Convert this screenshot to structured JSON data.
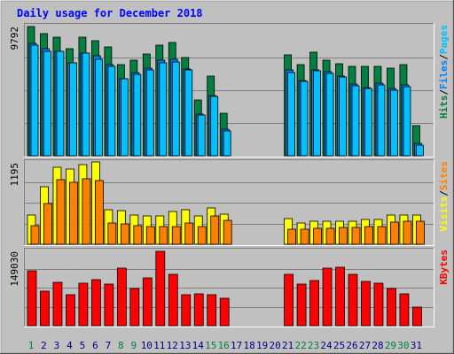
{
  "title": "Daily usage for December 2018",
  "colors": {
    "hits": "#008040",
    "files": "#0080ff",
    "pages": "#00c0ff",
    "visits": "#ffff00",
    "sites": "#ff8000",
    "kbytes": "#ff0000",
    "weekend_day": "#008040",
    "weekday": "#000080",
    "title": "#0000ff",
    "background": "#c0c0c0"
  },
  "chart_data": [
    {
      "type": "bar",
      "name": "hits-files-pages",
      "ymax_label": "9792",
      "ylim": [
        0,
        9792
      ],
      "right_labels": [
        "Hits",
        "Files",
        "Pages"
      ],
      "categories": [
        "1",
        "2",
        "3",
        "4",
        "5",
        "6",
        "7",
        "8",
        "9",
        "10",
        "11",
        "12",
        "13",
        "14",
        "15",
        "16",
        "17",
        "18",
        "19",
        "20",
        "21",
        "22",
        "23",
        "24",
        "25",
        "26",
        "27",
        "28",
        "29",
        "30",
        "31"
      ],
      "series": [
        {
          "name": "Hits",
          "values": [
            9690,
            9150,
            8880,
            7980,
            8880,
            8610,
            8150,
            6790,
            7160,
            7610,
            8270,
            8500,
            7340,
            4160,
            5970,
            3180,
            0,
            0,
            0,
            0,
            7520,
            6800,
            7710,
            7150,
            6870,
            6680,
            6680,
            6680,
            6540,
            6790,
            2280
          ]
        },
        {
          "name": "Files",
          "values": [
            8420,
            7980,
            7840,
            6930,
            7690,
            7480,
            6800,
            5780,
            6220,
            6540,
            7120,
            7180,
            6480,
            3090,
            4500,
            1990,
            0,
            0,
            0,
            0,
            6400,
            5630,
            6400,
            6270,
            5970,
            5380,
            5070,
            5440,
            5000,
            5270,
            950
          ]
        },
        {
          "name": "Pages",
          "values": [
            8290,
            7790,
            7840,
            6930,
            7690,
            7230,
            6680,
            5760,
            6060,
            6410,
            6930,
            7000,
            6390,
            3030,
            4440,
            1880,
            0,
            0,
            0,
            0,
            6220,
            5560,
            6350,
            6130,
            5870,
            5230,
            5000,
            5310,
            4870,
            5140,
            820
          ]
        }
      ]
    },
    {
      "type": "bar",
      "name": "visits-sites",
      "ymax_label": "1195",
      "ylim": [
        0,
        1195
      ],
      "right_labels": [
        "Visits",
        "Sites"
      ],
      "categories": [
        "1",
        "2",
        "3",
        "4",
        "5",
        "6",
        "7",
        "8",
        "9",
        "10",
        "11",
        "12",
        "13",
        "14",
        "15",
        "16",
        "17",
        "18",
        "19",
        "20",
        "21",
        "22",
        "23",
        "24",
        "25",
        "26",
        "27",
        "28",
        "29",
        "30",
        "31"
      ],
      "series": [
        {
          "name": "Visits",
          "values": [
            420,
            830,
            1110,
            1080,
            1150,
            1180,
            500,
            480,
            420,
            410,
            410,
            470,
            500,
            410,
            520,
            430,
            0,
            0,
            0,
            0,
            370,
            310,
            330,
            330,
            330,
            330,
            350,
            350,
            420,
            420,
            420
          ]
        },
        {
          "name": "Sites",
          "values": [
            270,
            580,
            930,
            890,
            940,
            920,
            300,
            290,
            270,
            260,
            250,
            260,
            310,
            260,
            410,
            340,
            0,
            0,
            0,
            0,
            210,
            220,
            230,
            230,
            240,
            240,
            260,
            260,
            320,
            330,
            330
          ]
        }
      ]
    },
    {
      "type": "bar",
      "name": "kbytes",
      "ymax_label": "149030",
      "ylim": [
        0,
        149030
      ],
      "right_labels": [
        "KBytes"
      ],
      "categories": [
        "1",
        "2",
        "3",
        "4",
        "5",
        "6",
        "7",
        "8",
        "9",
        "10",
        "11",
        "12",
        "13",
        "14",
        "15",
        "16",
        "17",
        "18",
        "19",
        "20",
        "21",
        "22",
        "23",
        "24",
        "25",
        "26",
        "27",
        "28",
        "29",
        "30",
        "31"
      ],
      "series": [
        {
          "name": "KBytes",
          "values": [
            107000,
            68000,
            85000,
            61000,
            84000,
            90000,
            81000,
            113000,
            73000,
            94000,
            145000,
            101000,
            61000,
            62000,
            61000,
            54000,
            0,
            0,
            0,
            0,
            101000,
            81000,
            88000,
            112000,
            115000,
            101000,
            86000,
            83000,
            72000,
            63000,
            36000
          ]
        }
      ]
    }
  ],
  "weekend_days": [
    1,
    8,
    9,
    15,
    16,
    22,
    23,
    29,
    30
  ],
  "x_labels": [
    "1",
    "2",
    "3",
    "4",
    "5",
    "6",
    "7",
    "8",
    "9",
    "10",
    "11",
    "12",
    "13",
    "14",
    "15",
    "16",
    "17",
    "18",
    "19",
    "20",
    "21",
    "22",
    "23",
    "24",
    "25",
    "26",
    "27",
    "28",
    "29",
    "30",
    "31"
  ]
}
